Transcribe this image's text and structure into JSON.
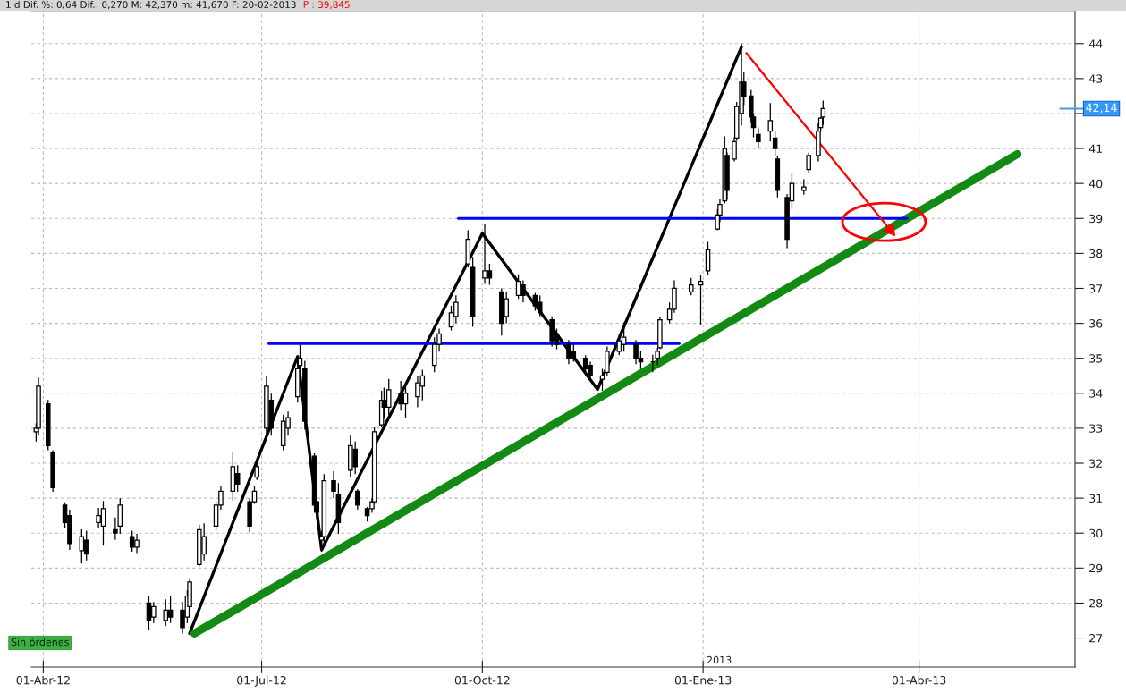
{
  "chart_data": {
    "type": "candlestick",
    "title": "1 d Dif. %: 0,64 Dif.: 0,270 M: 42,370 m: 41,670 F: 20-02-2013",
    "subtitle": "P : 39,845",
    "color": "#000000",
    "x": [
      "2012-03-29",
      "2012-03-30",
      "2012-04-03",
      "2012-04-05",
      "2012-04-10",
      "2012-04-12",
      "2012-04-17",
      "2012-04-19",
      "2012-04-24",
      "2012-04-26",
      "2012-05-01",
      "2012-05-03",
      "2012-05-08",
      "2012-05-10",
      "2012-05-15",
      "2012-05-17",
      "2012-05-22",
      "2012-05-24",
      "2012-05-29",
      "2012-05-31",
      "2012-06-01",
      "2012-06-05",
      "2012-06-07",
      "2012-06-12",
      "2012-06-14",
      "2012-06-19",
      "2012-06-21",
      "2012-06-26",
      "2012-06-28",
      "2012-06-29",
      "2012-07-03",
      "2012-07-05",
      "2012-07-10",
      "2012-07-12",
      "2012-07-16",
      "2012-07-17",
      "2012-07-19",
      "2012-07-23",
      "2012-07-24",
      "2012-07-26",
      "2012-07-27",
      "2012-07-31",
      "2012-08-02",
      "2012-08-07",
      "2012-08-09",
      "2012-08-10",
      "2012-08-14",
      "2012-08-16",
      "2012-08-17",
      "2012-08-20",
      "2012-08-21",
      "2012-08-23",
      "2012-08-28",
      "2012-08-30",
      "2012-09-04",
      "2012-09-06",
      "2012-09-11",
      "2012-09-13",
      "2012-09-18",
      "2012-09-20",
      "2012-09-25",
      "2012-09-27",
      "2012-10-02",
      "2012-10-04",
      "2012-10-09",
      "2012-10-11",
      "2012-10-16",
      "2012-10-18",
      "2012-10-23",
      "2012-10-25",
      "2012-10-30",
      "2012-11-01",
      "2012-11-06",
      "2012-11-08",
      "2012-11-13",
      "2012-11-15",
      "2012-11-20",
      "2012-11-22",
      "2012-11-27",
      "2012-11-29",
      "2012-12-04",
      "2012-12-06",
      "2012-12-11",
      "2012-12-13",
      "2012-12-14",
      "2012-12-18",
      "2012-12-20",
      "2012-12-27",
      "2012-12-31",
      "2013-01-03",
      "2013-01-07",
      "2013-01-08",
      "2013-01-10",
      "2013-01-11",
      "2013-01-14",
      "2013-01-15",
      "2013-01-17",
      "2013-01-18",
      "2013-01-21",
      "2013-01-22",
      "2013-01-24",
      "2013-01-29",
      "2013-01-31",
      "2013-02-01",
      "2013-02-05",
      "2013-02-07",
      "2013-02-12",
      "2013-02-14",
      "2013-02-18",
      "2013-02-19",
      "2013-02-20"
    ],
    "ohlc": [
      [
        32.9,
        33.14,
        32.62,
        33.0
      ],
      [
        33.0,
        34.45,
        32.79,
        34.2
      ],
      [
        33.7,
        33.81,
        32.37,
        32.5
      ],
      [
        32.3,
        32.37,
        31.18,
        31.3
      ],
      [
        30.8,
        30.88,
        30.16,
        30.3
      ],
      [
        30.5,
        30.67,
        29.52,
        29.7
      ],
      [
        29.5,
        30.11,
        29.13,
        29.9
      ],
      [
        29.8,
        30.07,
        29.22,
        29.4
      ],
      [
        30.3,
        30.72,
        30.15,
        30.5
      ],
      [
        30.2,
        30.92,
        29.64,
        30.7
      ],
      [
        30.1,
        30.45,
        29.81,
        30.0
      ],
      [
        30.2,
        31.0,
        29.98,
        30.8
      ],
      [
        29.9,
        30.07,
        29.47,
        29.6
      ],
      [
        29.6,
        29.98,
        29.43,
        29.8
      ],
      [
        28.0,
        28.2,
        27.22,
        27.5
      ],
      [
        27.6,
        28.03,
        27.43,
        27.9
      ],
      [
        27.5,
        28.11,
        27.34,
        27.8
      ],
      [
        27.8,
        28.2,
        27.43,
        27.6
      ],
      [
        27.8,
        28.03,
        27.13,
        27.3
      ],
      [
        27.6,
        28.37,
        27.43,
        28.2
      ],
      [
        27.9,
        28.71,
        27.86,
        28.6
      ],
      [
        29.1,
        30.24,
        29.05,
        30.1
      ],
      [
        29.4,
        30.28,
        29.22,
        29.9
      ],
      [
        30.2,
        30.92,
        30.07,
        30.8
      ],
      [
        30.8,
        31.35,
        30.67,
        31.2
      ],
      [
        31.2,
        32.33,
        30.92,
        31.9
      ],
      [
        31.7,
        31.94,
        31.18,
        31.4
      ],
      [
        30.9,
        31.0,
        30.03,
        30.2
      ],
      [
        30.9,
        31.35,
        30.84,
        31.2
      ],
      [
        31.6,
        32.03,
        31.52,
        31.9
      ],
      [
        33.0,
        34.5,
        32.71,
        34.2
      ],
      [
        33.8,
        33.99,
        32.79,
        33.0
      ],
      [
        32.5,
        33.39,
        32.37,
        33.2
      ],
      [
        33.0,
        33.48,
        32.79,
        33.3
      ],
      [
        33.9,
        34.84,
        33.73,
        34.7
      ],
      [
        34.8,
        35.39,
        34.67,
        35.0
      ],
      [
        34.7,
        34.93,
        32.96,
        33.2
      ],
      [
        32.2,
        32.28,
        30.59,
        30.8
      ],
      [
        30.9,
        31.35,
        30.41,
        30.6
      ],
      [
        29.8,
        30.07,
        29.47,
        29.9
      ],
      [
        29.9,
        31.69,
        29.64,
        31.5
      ],
      [
        31.5,
        31.77,
        31.0,
        31.2
      ],
      [
        31.1,
        31.43,
        29.98,
        30.3
      ],
      [
        31.8,
        32.79,
        31.6,
        32.5
      ],
      [
        32.4,
        32.62,
        31.69,
        31.9
      ],
      [
        31.2,
        31.26,
        30.67,
        30.8
      ],
      [
        30.7,
        30.75,
        30.33,
        30.5
      ],
      [
        30.7,
        31.0,
        30.58,
        30.9
      ],
      [
        30.9,
        33.05,
        30.84,
        32.9
      ],
      [
        33.1,
        34.07,
        33.05,
        33.8
      ],
      [
        33.8,
        34.16,
        33.3,
        33.6
      ],
      [
        33.6,
        34.41,
        33.39,
        34.1
      ],
      [
        34.0,
        34.35,
        33.5,
        33.7
      ],
      [
        33.7,
        34.2,
        33.3,
        34.0
      ],
      [
        33.9,
        34.5,
        33.6,
        34.3
      ],
      [
        34.2,
        34.67,
        33.8,
        34.5
      ],
      [
        34.8,
        35.6,
        34.6,
        35.4
      ],
      [
        35.4,
        35.85,
        35.19,
        35.7
      ],
      [
        35.9,
        36.5,
        35.8,
        36.3
      ],
      [
        36.2,
        36.8,
        36.0,
        36.6
      ],
      [
        37.7,
        38.66,
        37.6,
        38.4
      ],
      [
        37.6,
        37.9,
        35.9,
        36.2
      ],
      [
        37.3,
        38.84,
        37.13,
        37.5
      ],
      [
        37.5,
        37.7,
        37.1,
        37.3
      ],
      [
        36.9,
        37.0,
        35.65,
        36.0
      ],
      [
        36.2,
        36.9,
        36.0,
        36.7
      ],
      [
        36.8,
        37.4,
        36.7,
        37.2
      ],
      [
        37.1,
        37.23,
        36.6,
        36.8
      ],
      [
        36.8,
        36.87,
        36.36,
        36.5
      ],
      [
        36.6,
        36.8,
        36.2,
        36.3
      ],
      [
        36.1,
        36.2,
        35.34,
        35.5
      ],
      [
        35.7,
        35.85,
        35.26,
        35.4
      ],
      [
        35.4,
        35.52,
        34.83,
        35.0
      ],
      [
        35.2,
        35.4,
        34.9,
        35.0
      ],
      [
        35.0,
        35.09,
        34.5,
        34.7
      ],
      [
        34.8,
        34.9,
        34.4,
        34.5
      ],
      [
        34.4,
        34.7,
        34.07,
        34.5
      ],
      [
        34.6,
        35.34,
        34.5,
        35.2
      ],
      [
        35.2,
        35.7,
        35.09,
        35.5
      ],
      [
        35.4,
        36.03,
        35.19,
        35.6
      ],
      [
        35.4,
        35.52,
        34.83,
        35.0
      ],
      [
        35.0,
        35.2,
        34.7,
        34.9
      ],
      [
        34.9,
        35.1,
        34.6,
        34.9
      ],
      [
        35.0,
        35.3,
        34.8,
        35.2
      ],
      [
        35.3,
        36.2,
        35.26,
        36.1
      ],
      [
        36.1,
        36.6,
        36.0,
        36.4
      ],
      [
        36.4,
        37.23,
        36.3,
        37.0
      ],
      [
        36.9,
        37.3,
        36.8,
        37.1
      ],
      [
        37.1,
        37.38,
        35.95,
        37.2
      ],
      [
        37.5,
        38.33,
        37.38,
        38.1
      ],
      [
        38.7,
        39.27,
        38.66,
        39.1
      ],
      [
        39.1,
        39.55,
        38.9,
        39.4
      ],
      [
        39.5,
        41.35,
        39.43,
        41.0
      ],
      [
        40.8,
        40.89,
        39.53,
        39.8
      ],
      [
        40.7,
        41.32,
        40.63,
        41.2
      ],
      [
        41.3,
        42.33,
        41.22,
        42.2
      ],
      [
        42.0,
        44.0,
        41.66,
        42.9
      ],
      [
        42.9,
        43.2,
        42.25,
        42.5
      ],
      [
        42.5,
        42.68,
        41.73,
        41.9
      ],
      [
        41.9,
        42.0,
        41.32,
        41.6
      ],
      [
        41.4,
        41.6,
        41.0,
        41.2
      ],
      [
        41.5,
        42.3,
        41.2,
        41.8
      ],
      [
        41.3,
        41.48,
        40.8,
        41.0
      ],
      [
        40.7,
        40.8,
        39.6,
        39.8
      ],
      [
        39.6,
        39.7,
        38.15,
        38.4
      ],
      [
        39.5,
        40.3,
        39.27,
        40.0
      ],
      [
        39.8,
        40.12,
        39.68,
        39.9
      ],
      [
        40.4,
        40.89,
        40.3,
        40.8
      ],
      [
        40.8,
        41.73,
        40.63,
        41.5
      ],
      [
        41.6,
        41.9,
        41.48,
        41.87
      ],
      [
        41.9,
        42.37,
        41.67,
        42.14
      ]
    ],
    "series": [
      {
        "type": "line",
        "color": "#000000",
        "x": [
          "2012-06-01",
          "2012-07-16",
          "2012-07-26",
          "2012-10-01",
          "2012-11-18",
          "2013-01-17"
        ],
        "values": [
          27.13,
          35.05,
          29.52,
          38.57,
          34.11,
          43.91
        ]
      },
      {
        "type": "line",
        "color": "#138a13",
        "x": [
          "2012-06-03",
          "2013-05-12"
        ],
        "values": [
          27.13,
          40.84
        ]
      },
      {
        "type": "line",
        "color": "#0000ff",
        "x": [
          "2012-09-21",
          "2013-03-27"
        ],
        "values": [
          39.0,
          39.0
        ]
      },
      {
        "type": "line",
        "color": "#0000ff",
        "x": [
          "2012-07-04",
          "2012-12-22"
        ],
        "values": [
          35.42,
          35.42
        ]
      },
      {
        "type": "line",
        "color": "#ff0000",
        "x": [
          "2013-01-19",
          "2013-03-20"
        ],
        "values": [
          43.73,
          38.67
        ],
        "marker": "triangle"
      }
    ],
    "ref_lines": [
      {
        "axis": "y",
        "value": 42.14,
        "label": "42,14",
        "color": "#3399ff"
      }
    ],
    "annotations": [
      "Sin órdenes",
      "2013"
    ],
    "xlim": [
      "2012-03-27",
      "2013-06-05"
    ],
    "ylim": [
      26.17,
      44.94
    ],
    "xticks": [
      {
        "value": "2012-04-01",
        "label": "01-Abr-12"
      },
      {
        "value": "2012-07-01",
        "label": "01-Jul-12"
      },
      {
        "value": "2012-10-01",
        "label": "01-Oct-12"
      },
      {
        "value": "2013-01-01",
        "label": "01-Ene-13"
      },
      {
        "value": "2013-04-01",
        "label": "01-Abr-13"
      }
    ],
    "yticks": [
      27,
      28,
      29,
      30,
      31,
      32,
      33,
      34,
      35,
      36,
      37,
      38,
      39,
      40,
      41,
      {
        "value": 42,
        "label": null
      },
      43,
      44
    ],
    "grid": true
  }
}
